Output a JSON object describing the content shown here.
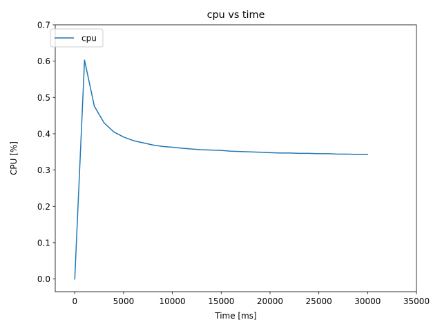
{
  "chart_data": {
    "type": "line",
    "title": "cpu vs time",
    "xlabel": "Time [ms]",
    "ylabel": "CPU [%]",
    "xlim": [
      -2000,
      35000
    ],
    "ylim": [
      -0.035,
      0.7
    ],
    "xticks": [
      0,
      5000,
      10000,
      15000,
      20000,
      25000,
      30000,
      35000
    ],
    "xtick_labels": [
      "0",
      "5000",
      "10000",
      "15000",
      "20000",
      "25000",
      "30000",
      "35000"
    ],
    "yticks": [
      0.0,
      0.1,
      0.2,
      0.3,
      0.4,
      0.5,
      0.6,
      0.7
    ],
    "ytick_labels": [
      "0.0",
      "0.1",
      "0.2",
      "0.3",
      "0.4",
      "0.5",
      "0.6",
      "0.7"
    ],
    "grid": false,
    "legend_position": "top-left",
    "series": [
      {
        "name": "cpu",
        "color": "#1f77b4",
        "x": [
          0,
          1000,
          2000,
          3000,
          4000,
          5000,
          6000,
          7000,
          8000,
          9000,
          10000,
          11000,
          12000,
          13000,
          14000,
          15000,
          16000,
          17000,
          18000,
          19000,
          20000,
          21000,
          22000,
          23000,
          24000,
          25000,
          26000,
          27000,
          28000,
          29000,
          30000
        ],
        "y": [
          0.0,
          0.603,
          0.476,
          0.43,
          0.405,
          0.391,
          0.381,
          0.375,
          0.369,
          0.365,
          0.363,
          0.36,
          0.358,
          0.356,
          0.355,
          0.354,
          0.352,
          0.351,
          0.35,
          0.349,
          0.348,
          0.347,
          0.347,
          0.346,
          0.346,
          0.345,
          0.345,
          0.344,
          0.344,
          0.343,
          0.343
        ]
      }
    ]
  }
}
